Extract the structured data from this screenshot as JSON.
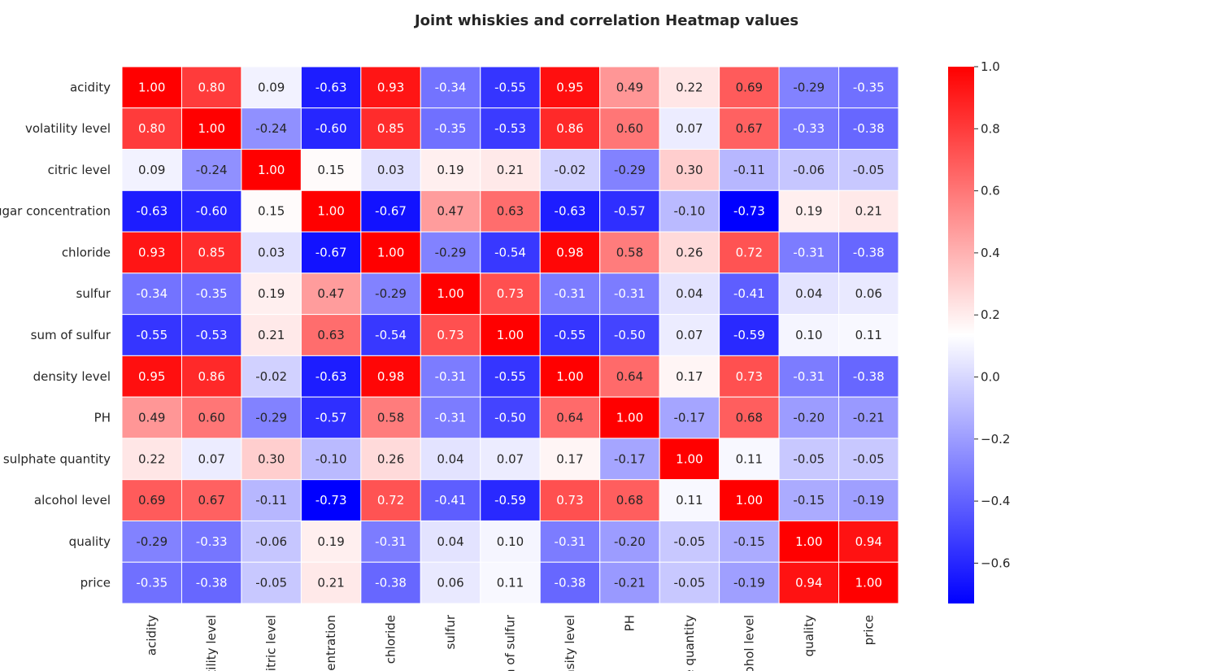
{
  "chart_data": {
    "type": "heatmap",
    "title": "Joint whiskies and correlation Heatmap values",
    "row_labels": [
      "acidity",
      "volatility level",
      "citric level",
      "sugar concentration",
      "chloride",
      "sulfur",
      "sum of sulfur",
      "density level",
      "PH",
      "sulphate quantity",
      "alcohol level",
      "quality",
      "price"
    ],
    "col_labels": [
      "acidity",
      "olatility level",
      "citric level",
      "centration",
      "chloride",
      "sulfur",
      "m of sulfur",
      "nsity level",
      "PH",
      "te quantity",
      "cohol level",
      "quality",
      "price"
    ],
    "values": [
      [
        1.0,
        0.8,
        0.09,
        -0.63,
        0.93,
        -0.34,
        -0.55,
        0.95,
        0.49,
        0.22,
        0.69,
        -0.29,
        -0.35
      ],
      [
        0.8,
        1.0,
        -0.24,
        -0.6,
        0.85,
        -0.35,
        -0.53,
        0.86,
        0.6,
        0.07,
        0.67,
        -0.33,
        -0.38
      ],
      [
        0.09,
        -0.24,
        1.0,
        0.15,
        0.03,
        0.19,
        0.21,
        -0.02,
        -0.29,
        0.3,
        -0.11,
        -0.06,
        -0.05
      ],
      [
        -0.63,
        -0.6,
        0.15,
        1.0,
        -0.67,
        0.47,
        0.63,
        -0.63,
        -0.57,
        -0.1,
        -0.73,
        0.19,
        0.21
      ],
      [
        0.93,
        0.85,
        0.03,
        -0.67,
        1.0,
        -0.29,
        -0.54,
        0.98,
        0.58,
        0.26,
        0.72,
        -0.31,
        -0.38
      ],
      [
        -0.34,
        -0.35,
        0.19,
        0.47,
        -0.29,
        1.0,
        0.73,
        -0.31,
        -0.31,
        0.04,
        -0.41,
        0.04,
        0.06
      ],
      [
        -0.55,
        -0.53,
        0.21,
        0.63,
        -0.54,
        0.73,
        1.0,
        -0.55,
        -0.5,
        0.07,
        -0.59,
        0.1,
        0.11
      ],
      [
        0.95,
        0.86,
        -0.02,
        -0.63,
        0.98,
        -0.31,
        -0.55,
        1.0,
        0.64,
        0.17,
        0.73,
        -0.31,
        -0.38
      ],
      [
        0.49,
        0.6,
        -0.29,
        -0.57,
        0.58,
        -0.31,
        -0.5,
        0.64,
        1.0,
        -0.17,
        0.68,
        -0.2,
        -0.21
      ],
      [
        0.22,
        0.07,
        0.3,
        -0.1,
        0.26,
        0.04,
        0.07,
        0.17,
        -0.17,
        1.0,
        0.11,
        -0.05,
        -0.05
      ],
      [
        0.69,
        0.67,
        -0.11,
        -0.73,
        0.72,
        -0.41,
        -0.59,
        0.73,
        0.68,
        0.11,
        1.0,
        -0.15,
        -0.19
      ],
      [
        -0.29,
        -0.33,
        -0.06,
        0.19,
        -0.31,
        0.04,
        0.1,
        -0.31,
        -0.2,
        -0.05,
        -0.15,
        1.0,
        0.94
      ],
      [
        -0.35,
        -0.38,
        -0.05,
        0.21,
        -0.38,
        0.06,
        0.11,
        -0.38,
        -0.21,
        -0.05,
        -0.19,
        0.94,
        1.0
      ]
    ],
    "colormap": "bwr",
    "colors": {
      "low": "#0000ff",
      "mid": "#ffffff",
      "high": "#ff0000"
    },
    "vmin": -0.73,
    "vmax": 1.0,
    "annotate": true,
    "value_format": "0.00",
    "colorbar": {
      "ticks": [
        1.0,
        0.8,
        0.6,
        0.4,
        0.2,
        0.0,
        -0.2,
        -0.4,
        -0.6
      ],
      "tick_labels": [
        "1.0",
        "0.8",
        "0.6",
        "0.4",
        "0.2",
        "0.0",
        "−0.2",
        "−0.4",
        "−0.6"
      ]
    },
    "grid": false,
    "legend": "colorbar-right"
  }
}
